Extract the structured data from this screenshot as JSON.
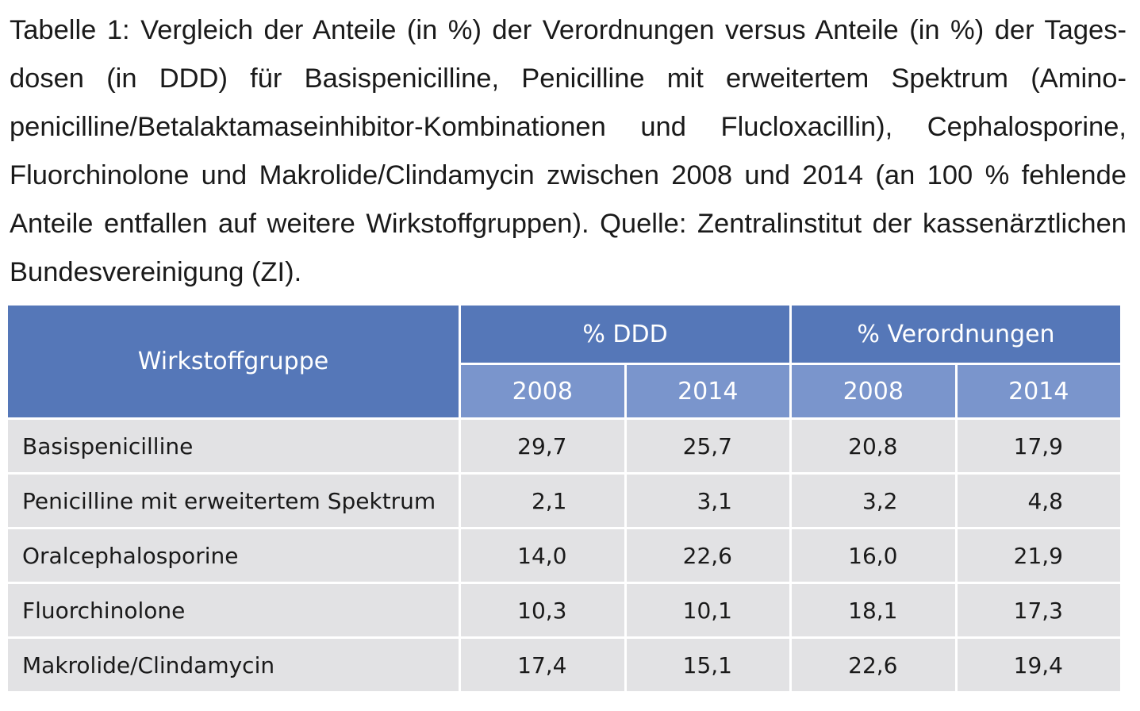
{
  "caption": {
    "line1": "Tabelle 1: Vergleich der Anteile (in %) der Verordnungen versus Anteile (in %) der Tages-",
    "line2": "dosen (in DDD) für Basispenicilline, Penicilline mit erweitertem Spektrum (Amino-",
    "line3": "penicilline/Betalaktamaseinhibitor-Kombinationen und Flucloxacillin), Cephalosporine,",
    "line4": "Fluorchinolone und Makrolide/Clindamycin zwischen 2008 und 2014 (an 100 % fehlende",
    "line5": "Anteile entfallen auf weitere Wirkstoffgruppen). Quelle: Zentralinstitut der kassenärztlichen",
    "line6": "Bundesvereinigung (ZI)."
  },
  "table": {
    "header_group": "Wirkstoffgruppe",
    "header_ddd": "% DDD",
    "header_verordnungen": "% Verordnungen",
    "years": [
      "2008",
      "2014",
      "2008",
      "2014"
    ],
    "rows": [
      {
        "name": "Basispenicilline",
        "values": [
          "29,7",
          "25,7",
          "20,8",
          "17,9"
        ]
      },
      {
        "name": "Penicilline mit erweitertem Spektrum",
        "values": [
          "2,1",
          "3,1",
          "3,2",
          "4,8"
        ]
      },
      {
        "name": "Oralcephalosporine",
        "values": [
          "14,0",
          "22,6",
          "16,0",
          "21,9"
        ]
      },
      {
        "name": "Fluorchinolone",
        "values": [
          "10,3",
          "10,1",
          "18,1",
          "17,3"
        ]
      },
      {
        "name": "Makrolide/Clindamycin",
        "values": [
          "17,4",
          "15,1",
          "22,6",
          "19,4"
        ]
      }
    ]
  },
  "colors": {
    "header_dark": "#5577b8",
    "header_light": "#7a95cc",
    "row_bg": "#e2e2e4"
  }
}
